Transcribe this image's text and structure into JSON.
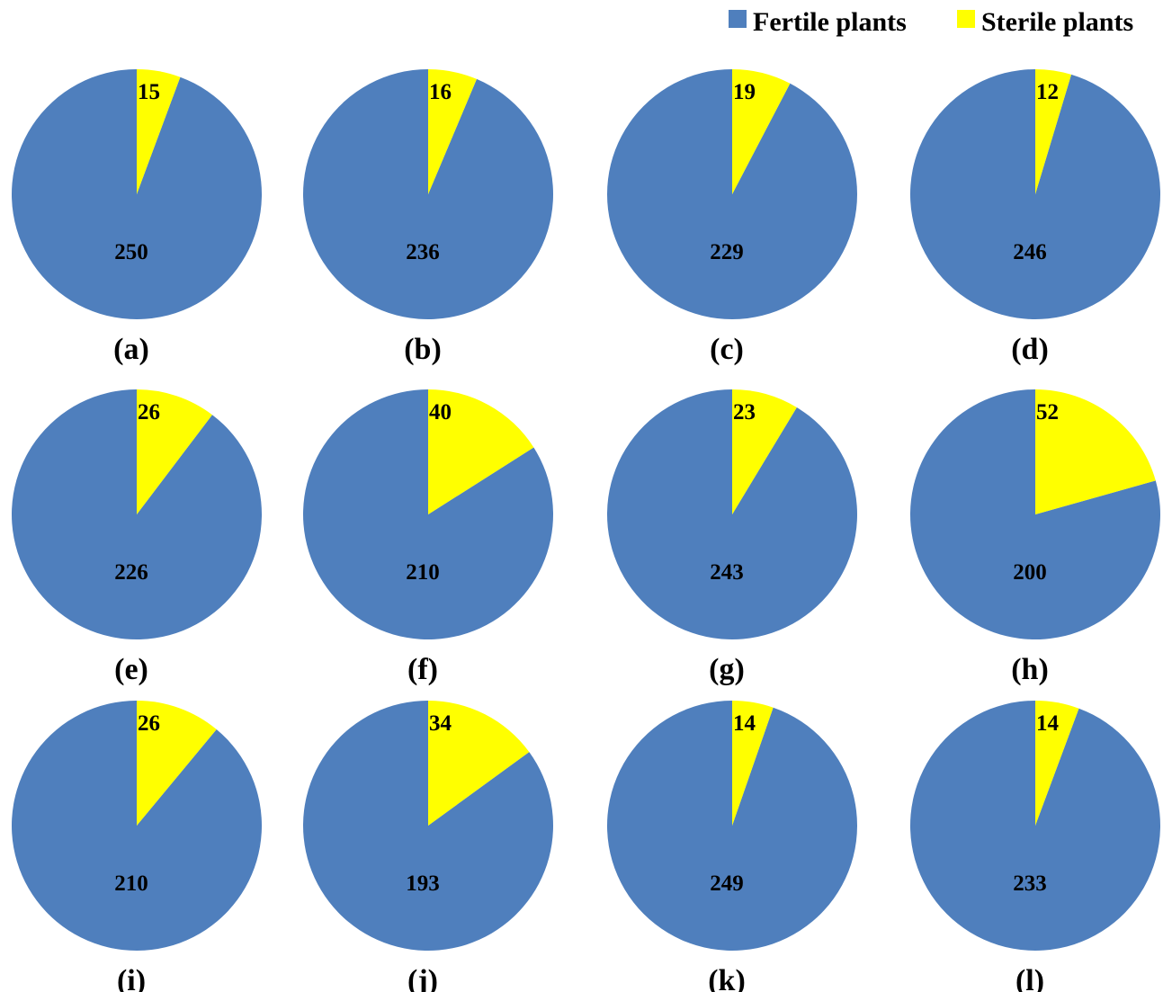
{
  "chart_data": {
    "type": "pie",
    "legend": [
      {
        "name": "Fertile plants",
        "color": "#4f7fbd"
      },
      {
        "name": "Sterile plants",
        "color": "#ffff00"
      }
    ],
    "legend_position": "top-right",
    "series_names": [
      "Fertile plants",
      "Sterile plants"
    ],
    "panels": [
      {
        "label": "(a)",
        "fertile": 250,
        "sterile": 15
      },
      {
        "label": "(b)",
        "fertile": 236,
        "sterile": 16
      },
      {
        "label": "(c)",
        "fertile": 229,
        "sterile": 19
      },
      {
        "label": "(d)",
        "fertile": 246,
        "sterile": 12
      },
      {
        "label": "(e)",
        "fertile": 226,
        "sterile": 26
      },
      {
        "label": "(f)",
        "fertile": 210,
        "sterile": 40
      },
      {
        "label": "(g)",
        "fertile": 243,
        "sterile": 23
      },
      {
        "label": "(h)",
        "fertile": 200,
        "sterile": 52
      },
      {
        "label": "(i)",
        "fertile": 210,
        "sterile": 26
      },
      {
        "label": "(j)",
        "fertile": 193,
        "sterile": 34
      },
      {
        "label": "(k)",
        "fertile": 249,
        "sterile": 14
      },
      {
        "label": "(l)",
        "fertile": 233,
        "sterile": 14
      }
    ]
  }
}
